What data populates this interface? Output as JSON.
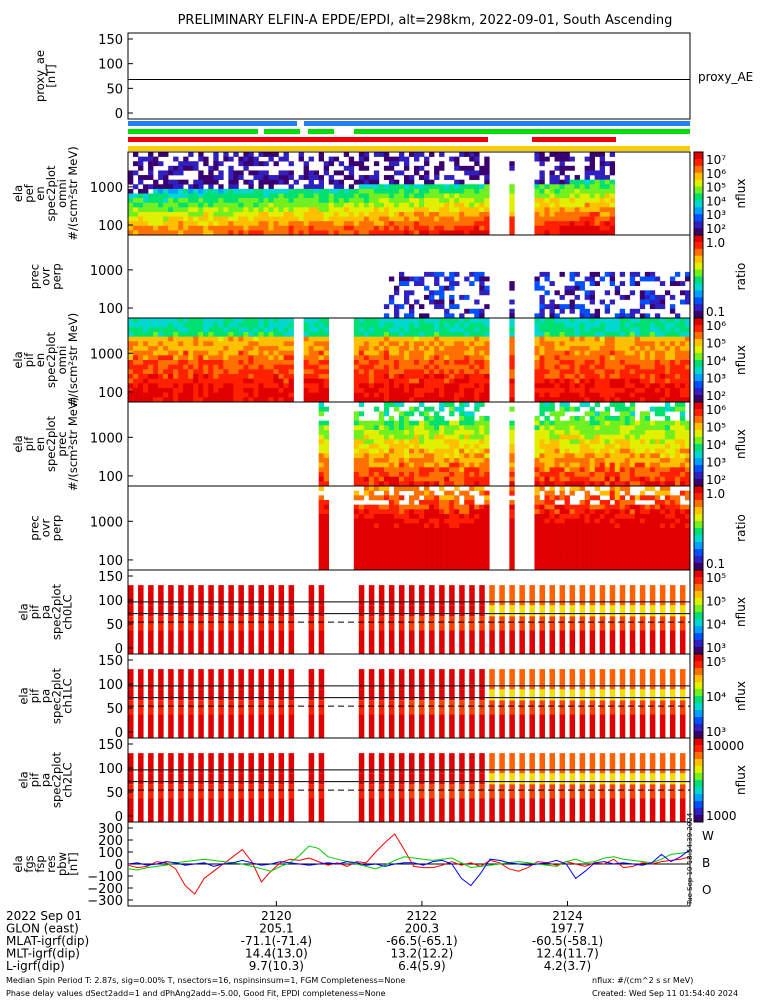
{
  "title": "PRELIMINARY ELFIN-A EPDE/EPDI, alt=298km, 2022-09-01, South Ascending",
  "colors": {
    "frame": "#000000",
    "red": "#ff0000",
    "green": "#00cc00",
    "blue": "#0000ff",
    "status_blue": "#2080ff",
    "status_green": "#00dd00",
    "status_red": "#ee0000",
    "status_yellow": "#ffcc00"
  },
  "panels": [
    {
      "id": "proxy_ae",
      "ylabel_lines": [
        "proxy_ae",
        "[nT]"
      ],
      "yticks": [
        "150",
        "100",
        "50",
        "0"
      ],
      "right_label": "proxy_AE",
      "cbar": null
    },
    {
      "id": "pef_omni",
      "ylabel_lines": [
        "ela",
        "pef",
        "en",
        "spec2plot",
        "omni",
        "#/(scm²str MeV)"
      ],
      "yticks": [
        "1000",
        "100"
      ],
      "cbar": {
        "ticks": [
          "10⁷",
          "10⁶",
          "10⁵",
          "10⁴",
          "10³",
          "10²"
        ],
        "label": "nflux"
      }
    },
    {
      "id": "pef_ratio",
      "ylabel_lines": [
        "prec",
        "ovr",
        "perp"
      ],
      "yticks": [
        "1000",
        "100"
      ],
      "cbar": {
        "ticks": [
          "1.0",
          "0.1"
        ],
        "label": "ratio"
      }
    },
    {
      "id": "pif_omni",
      "ylabel_lines": [
        "ela",
        "pif",
        "en",
        "spec2plot",
        "omni",
        "#/(scm²str MeV)"
      ],
      "yticks": [
        "1000",
        "100"
      ],
      "cbar": {
        "ticks": [
          "10⁶",
          "10⁵",
          "10⁴",
          "10³",
          "10²"
        ],
        "label": "nflux"
      }
    },
    {
      "id": "pif_prec",
      "ylabel_lines": [
        "ela",
        "pif",
        "en",
        "spec2plot",
        "prec",
        "#/(scm²str MeV)"
      ],
      "yticks": [
        "1000",
        "100"
      ],
      "cbar": {
        "ticks": [
          "10⁶",
          "10⁵",
          "10⁴",
          "10³",
          "10²"
        ],
        "label": "nflux"
      }
    },
    {
      "id": "pif_ratio",
      "ylabel_lines": [
        "prec",
        "ovr",
        "perp"
      ],
      "yticks": [
        "1000",
        "100"
      ],
      "cbar": {
        "ticks": [
          "1.0",
          "0.1"
        ],
        "label": "ratio"
      }
    },
    {
      "id": "pa_ch0",
      "ylabel_lines": [
        "ela",
        "pif",
        "pa",
        "spec2plot",
        "ch0LC"
      ],
      "yticks": [
        "150",
        "100",
        "50",
        "0"
      ],
      "cbar": {
        "ticks": [
          "10⁵",
          "10⁵",
          "10⁴",
          "10³"
        ],
        "label": "nflux"
      }
    },
    {
      "id": "pa_ch1",
      "ylabel_lines": [
        "ela",
        "pif",
        "pa",
        "spec2plot",
        "ch1LC"
      ],
      "yticks": [
        "150",
        "100",
        "50",
        "0"
      ],
      "cbar": {
        "ticks": [
          "10⁵",
          "10⁴",
          "10³"
        ],
        "label": "nflux"
      }
    },
    {
      "id": "pa_ch2",
      "ylabel_lines": [
        "ela",
        "pif",
        "pa",
        "spec2plot",
        "ch2LC"
      ],
      "yticks": [
        "150",
        "100",
        "50",
        "0"
      ],
      "cbar": {
        "ticks": [
          "10000",
          "1000"
        ],
        "label": "nflux"
      }
    },
    {
      "id": "fgs",
      "ylabel_lines": [
        "ela",
        "fgs",
        "fsp",
        "res",
        "pbw",
        "[nT]"
      ],
      "yticks": [
        "300",
        "200",
        "100",
        "0",
        "−100",
        "−200",
        "−300"
      ],
      "cbar": null,
      "legend": [
        "W",
        "B",
        "O"
      ]
    }
  ],
  "chart_data": {
    "type": "line",
    "title": "PRELIMINARY ELFIN-A EPDE/EPDI, alt=298km, 2022-09-01, South Ascending",
    "xticks": [
      "2120",
      "2122",
      "2124"
    ],
    "proxy_ae": {
      "ylim": [
        0,
        150
      ],
      "value": 68
    },
    "fgs": {
      "ylim": [
        -300,
        300
      ],
      "x": [
        0,
        1,
        2,
        3,
        4,
        5,
        6,
        7,
        8,
        9,
        10,
        11,
        12,
        13,
        14,
        15,
        16,
        17,
        18,
        19,
        20,
        21,
        22,
        23,
        24,
        25,
        26,
        27,
        28,
        29,
        30,
        31,
        32,
        33,
        34,
        35,
        36,
        37,
        38,
        39,
        40,
        41,
        42,
        43,
        44,
        45,
        46,
        47,
        48,
        49,
        50,
        51,
        52,
        53,
        54,
        55,
        56,
        57,
        58,
        59
      ],
      "series": [
        {
          "name": "W",
          "values": [
            -10,
            -30,
            -20,
            20,
            10,
            -40,
            -180,
            -250,
            -120,
            -60,
            0,
            60,
            120,
            20,
            -150,
            -60,
            10,
            40,
            30,
            50,
            20,
            -10,
            10,
            -20,
            20,
            10,
            100,
            180,
            250,
            120,
            -20,
            -30,
            -30,
            -10,
            20,
            -10,
            10,
            -20,
            30,
            10,
            -40,
            -60,
            -30,
            20,
            10,
            -10,
            20,
            0,
            -20,
            10,
            0,
            40,
            -30,
            -20,
            10,
            0,
            20,
            30,
            40,
            60
          ]
        },
        {
          "name": "B",
          "values": [
            -40,
            -50,
            -30,
            -20,
            -10,
            10,
            20,
            30,
            40,
            30,
            20,
            10,
            0,
            -20,
            -40,
            -60,
            -20,
            10,
            70,
            150,
            130,
            60,
            40,
            20,
            0,
            -20,
            -40,
            -10,
            30,
            60,
            50,
            40,
            30,
            40,
            50,
            10,
            -30,
            -20,
            -10,
            0,
            10,
            20,
            10,
            0,
            -10,
            -20,
            20,
            40,
            10,
            20,
            50,
            60,
            40,
            30,
            20,
            10,
            40,
            80,
            90,
            100
          ]
        },
        {
          "name": "O",
          "values": [
            0,
            10,
            -10,
            0,
            20,
            10,
            -10,
            0,
            10,
            -20,
            0,
            10,
            30,
            10,
            -10,
            0,
            20,
            10,
            0,
            -10,
            0,
            10,
            0,
            20,
            10,
            -10,
            0,
            -20,
            0,
            10,
            10,
            -10,
            20,
            30,
            0,
            -120,
            -180,
            -80,
            40,
            30,
            10,
            0,
            -10,
            0,
            10,
            30,
            0,
            -120,
            -60,
            10,
            20,
            0,
            10,
            0,
            -10,
            10,
            80,
            20,
            60,
            120
          ]
        }
      ]
    }
  },
  "footer": {
    "rows": [
      {
        "label": "2022 Sep 01",
        "vals": [
          "2120",
          "2122",
          "2124"
        ]
      },
      {
        "label": "GLON (east)",
        "vals": [
          "205.1",
          "200.3",
          "197.7"
        ]
      },
      {
        "label": "MLAT-igrf(dip)",
        "vals": [
          "-71.1(-71.4)",
          "-66.5(-65.1)",
          "-60.5(-58.1)"
        ]
      },
      {
        "label": "MLT-igrf(dip)",
        "vals": [
          "14.4(13.0)",
          "13.2(12.2)",
          "12.4(11.7)"
        ]
      },
      {
        "label": "L-igrf(dip)",
        "vals": [
          "9.7(10.3)",
          "6.4(5.9)",
          "4.2(3.7)"
        ]
      }
    ],
    "note1": "Median Spin Period T: 2.87s, sig=0.00% T, nsectors=16, nspinsinsum=1, FGM Completeness=None",
    "note2": "Phase delay values dSect2add=1 and dPhAng2add=-5.00, Good Fit, EPDI completeness=None",
    "units": "nflux: #/(cm^2 s sr MeV)",
    "created": "Created: Wed Sep 11 01:54:40 2024",
    "side_stamp": "Tue Sep 10 18:54:39 2024"
  }
}
